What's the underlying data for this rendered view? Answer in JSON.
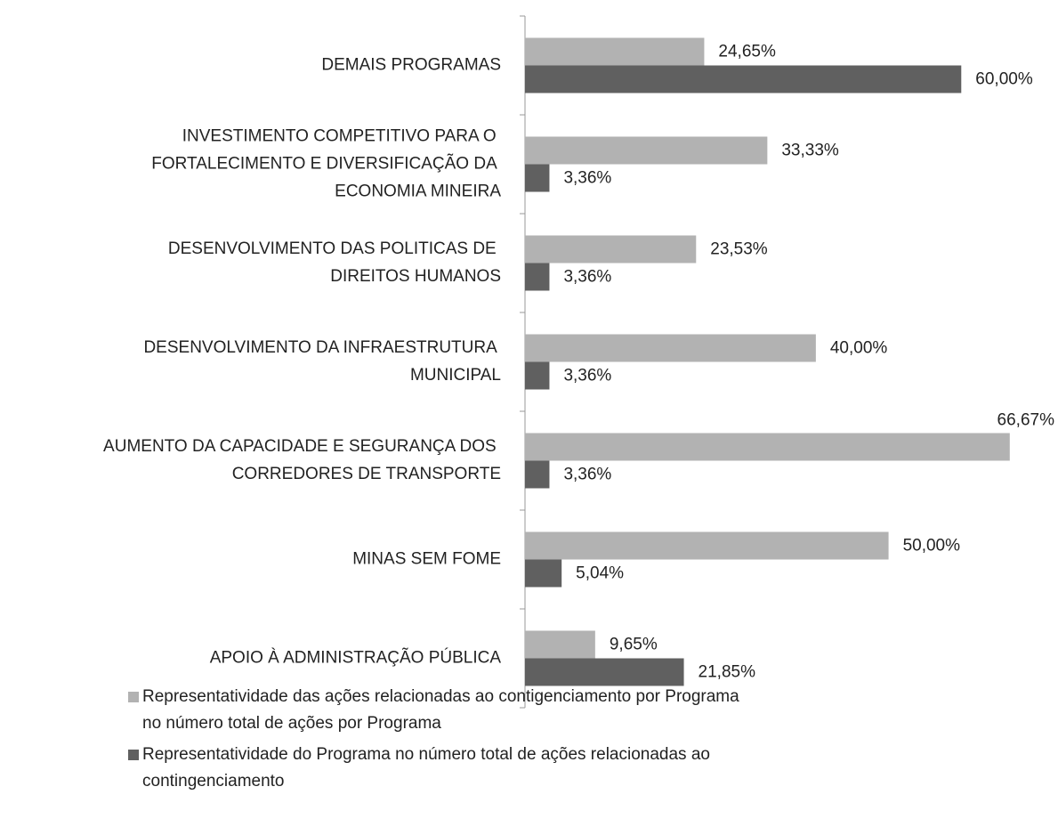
{
  "chart_data": {
    "type": "bar",
    "orientation": "horizontal",
    "categories": [
      "DEMAIS PROGRAMAS",
      "INVESTIMENTO COMPETITIVO PARA O FORTALECIMENTO E DIVERSIFICAÇÃO DA ECONOMIA MINEIRA",
      "DESENVOLVIMENTO DAS POLITICAS DE DIREITOS HUMANOS",
      "DESENVOLVIMENTO DA INFRAESTRUTURA MUNICIPAL",
      "AUMENTO DA CAPACIDADE E SEGURANÇA DOS CORREDORES DE TRANSPORTE",
      "MINAS SEM FOME",
      "APOIO À ADMINISTRAÇÃO PÚBLICA"
    ],
    "series": [
      {
        "name": "Representatividade das ações relacionadas ao contigenciamento por Programa no número total de ações por Programa",
        "color": "#b2b2b2",
        "values": [
          24.65,
          33.33,
          23.53,
          40.0,
          66.67,
          50.0,
          9.65
        ],
        "value_labels": [
          "24,65%",
          "33,33%",
          "23,53%",
          "40,00%",
          "66,67%",
          "50,00%",
          "9,65%"
        ]
      },
      {
        "name": "Representatividade do Programa no número total de ações relacionadas ao contingenciamento",
        "color": "#606060",
        "values": [
          60.0,
          3.36,
          3.36,
          3.36,
          3.36,
          5.04,
          21.85
        ],
        "value_labels": [
          "60,00%",
          "3,36%",
          "3,36%",
          "3,36%",
          "3,36%",
          "5,04%",
          "21,85%"
        ]
      }
    ],
    "xlim": [
      0,
      70
    ],
    "legend": "bottom"
  }
}
